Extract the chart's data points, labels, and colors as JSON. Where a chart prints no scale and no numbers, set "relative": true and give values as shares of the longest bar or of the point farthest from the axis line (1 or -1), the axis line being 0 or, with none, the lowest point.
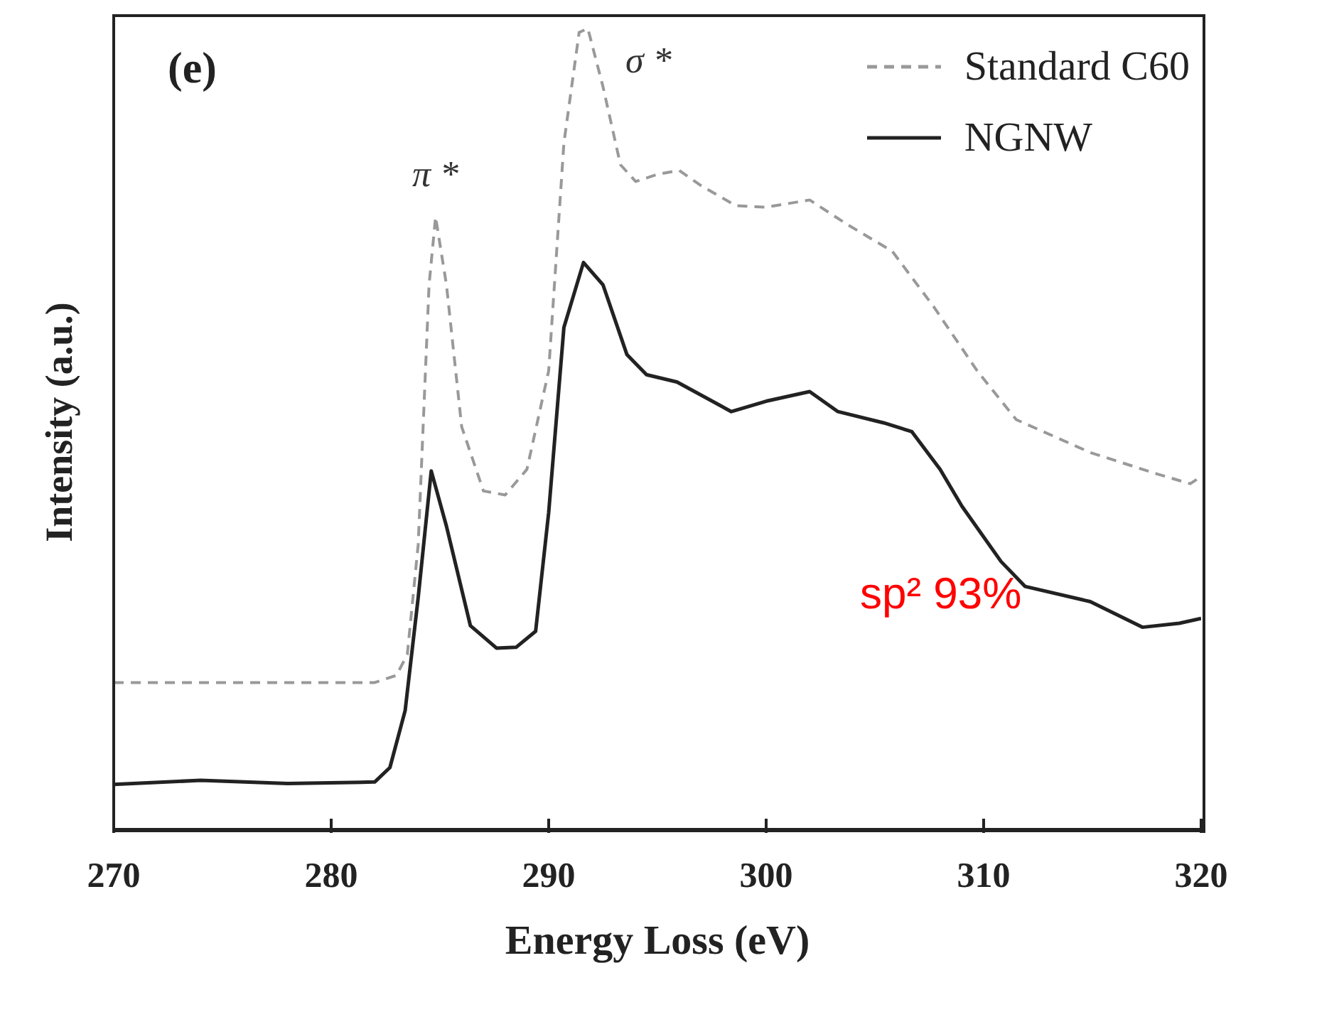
{
  "chart_data": {
    "type": "line",
    "relative": true,
    "xlabel": "Energy Loss (eV)",
    "ylabel": "Intensity (a.u.)",
    "xlim": [
      270,
      320
    ],
    "xticks": [
      270,
      280,
      290,
      300,
      310,
      320
    ],
    "legend": "top right",
    "grid": false,
    "marker": "none",
    "annotations": [
      "(e)",
      "sp² 93%",
      "π *",
      "σ *"
    ],
    "series": [
      {
        "name": "Standard C60",
        "color": "#999999",
        "line_style": "dashed",
        "x": [
          270,
          282,
          283,
          283.5,
          284,
          284.5,
          284.8,
          285.3,
          286,
          287,
          288,
          289,
          290,
          290.7,
          291.4,
          291.8,
          292.5,
          293.3,
          294,
          295,
          296,
          297,
          298.6,
          300,
          302,
          303.7,
          305.8,
          307.7,
          309.7,
          311.5,
          314.9,
          318,
          319.5,
          320
        ],
        "values": [
          0.184,
          0.184,
          0.193,
          0.219,
          0.356,
          0.68,
          0.765,
          0.68,
          0.503,
          0.423,
          0.418,
          0.45,
          0.573,
          0.857,
          0.995,
          1,
          0.927,
          0.83,
          0.809,
          0.818,
          0.823,
          0.804,
          0.779,
          0.777,
          0.786,
          0.756,
          0.722,
          0.653,
          0.573,
          0.512,
          0.471,
          0.444,
          0.432,
          0.441
        ]
      },
      {
        "name": "NGNW",
        "color": "#222222",
        "line_style": "solid",
        "x": [
          270,
          274,
          278,
          282,
          282.7,
          283.4,
          284,
          284.6,
          285.3,
          286.4,
          287.6,
          288.5,
          289.4,
          290,
          290.7,
          291.6,
          292.5,
          293.6,
          294.5,
          295.9,
          298.4,
          300,
          302,
          303.3,
          305.4,
          306.7,
          308,
          309,
          310.8,
          311.9,
          314.9,
          317.3,
          319,
          320
        ],
        "values": [
          0.057,
          0.062,
          0.058,
          0.06,
          0.078,
          0.149,
          0.29,
          0.448,
          0.379,
          0.255,
          0.227,
          0.228,
          0.248,
          0.396,
          0.627,
          0.708,
          0.68,
          0.593,
          0.568,
          0.559,
          0.522,
          0.535,
          0.547,
          0.522,
          0.508,
          0.497,
          0.45,
          0.404,
          0.335,
          0.304,
          0.285,
          0.253,
          0.258,
          0.264
        ]
      }
    ]
  }
}
